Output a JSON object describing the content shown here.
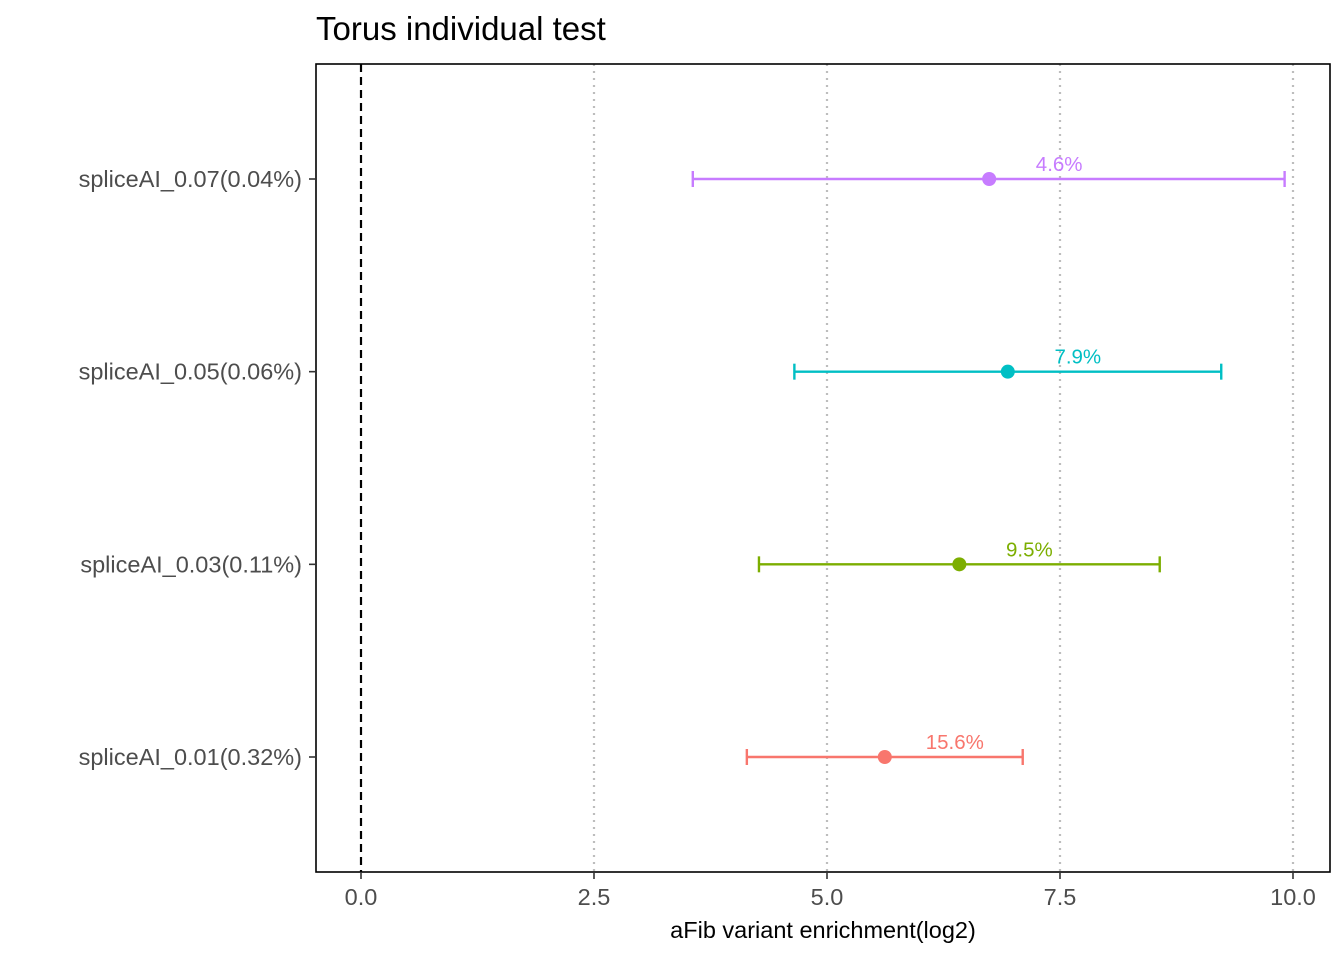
{
  "chart_data": {
    "type": "forest",
    "title": "Torus individual test",
    "xlabel": "aFib variant enrichment(log2)",
    "ylabel": "",
    "xlim": [
      -0.2,
      10.2
    ],
    "x_ticks": [
      0.0,
      2.5,
      5.0,
      7.5,
      10.0
    ],
    "x_tick_labels": [
      "0.0",
      "2.5",
      "5.0",
      "7.5",
      "10.0"
    ],
    "reference_line": 0,
    "grid": "vertical dotted at x ticks",
    "legend": "none",
    "categories": [
      "spliceAI_0.01(0.32%)",
      "spliceAI_0.03(0.11%)",
      "spliceAI_0.05(0.06%)",
      "spliceAI_0.07(0.04%)"
    ],
    "points": [
      {
        "category": "spliceAI_0.01(0.32%)",
        "estimate": 5.62,
        "low": 4.14,
        "high": 7.1,
        "label": "15.6%",
        "color": "#F8766D"
      },
      {
        "category": "spliceAI_0.03(0.11%)",
        "estimate": 6.42,
        "low": 4.27,
        "high": 8.57,
        "label": "9.5%",
        "color": "#7CAE00"
      },
      {
        "category": "spliceAI_0.05(0.06%)",
        "estimate": 6.94,
        "low": 4.65,
        "high": 9.23,
        "label": "7.9%",
        "color": "#00BFC4"
      },
      {
        "category": "spliceAI_0.07(0.04%)",
        "estimate": 6.74,
        "low": 3.56,
        "high": 9.91,
        "label": "4.6%",
        "color": "#C77CFF"
      }
    ]
  }
}
